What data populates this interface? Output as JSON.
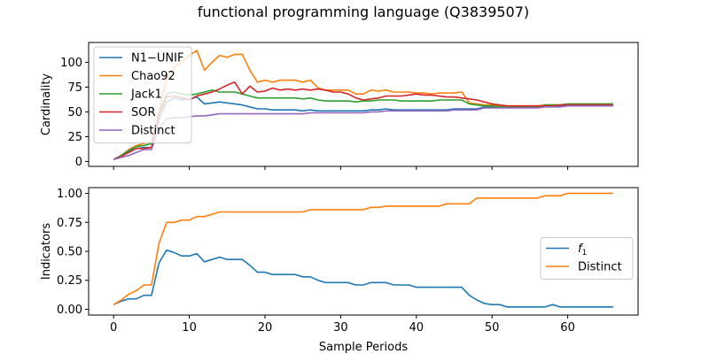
{
  "figure_title": "functional programming language (Q3839507)",
  "colors": {
    "blue": "#1f77b4",
    "orange": "#ff7f0e",
    "green": "#2ca02c",
    "red": "#d62728",
    "purple": "#9467bd"
  },
  "chart_data": [
    {
      "type": "line",
      "ylabel": "Cardinality",
      "xlabel": "",
      "xlim": [
        -3.3,
        69.3
      ],
      "ylim": [
        -5,
        120
      ],
      "xticks": [
        0,
        10,
        20,
        30,
        40,
        50,
        60
      ],
      "yticks": [
        0,
        25,
        50,
        75,
        100
      ],
      "ytick_labels": [
        "0",
        "25",
        "50",
        "75",
        "100"
      ],
      "show_x_tick_labels": false,
      "legend": {
        "position": "upper-left"
      },
      "series": [
        {
          "name": "N1−UNIF",
          "color": "#1f77b4",
          "x": [
            0,
            1,
            2,
            3,
            4,
            5,
            6,
            7,
            8,
            9,
            10,
            11,
            12,
            13,
            14,
            15,
            16,
            17,
            18,
            19,
            20,
            21,
            22,
            23,
            24,
            25,
            26,
            27,
            28,
            29,
            30,
            31,
            32,
            33,
            34,
            35,
            36,
            37,
            38,
            39,
            40,
            41,
            42,
            43,
            44,
            45,
            46,
            47,
            48,
            49,
            50,
            51,
            52,
            53,
            54,
            55,
            56,
            57,
            58,
            59,
            60,
            61,
            62,
            63,
            64,
            65,
            66
          ],
          "y": [
            2,
            6,
            10,
            13,
            14,
            14,
            42,
            60,
            64,
            62,
            63,
            65,
            58,
            59,
            60,
            59,
            58,
            57,
            55,
            53,
            53,
            52,
            52,
            52,
            52,
            51,
            52,
            51,
            51,
            51,
            51,
            51,
            51,
            51,
            52,
            52,
            53,
            52,
            52,
            52,
            52,
            52,
            52,
            52,
            52,
            53,
            53,
            53,
            53,
            55,
            55,
            55,
            55,
            55,
            55,
            55,
            55,
            56,
            56,
            56,
            56,
            56,
            56,
            56,
            56,
            56,
            56
          ]
        },
        {
          "name": "Chao92",
          "color": "#ff7f0e",
          "x": [
            0,
            1,
            2,
            3,
            4,
            5,
            6,
            7,
            8,
            9,
            10,
            11,
            12,
            13,
            14,
            15,
            16,
            17,
            18,
            19,
            20,
            21,
            22,
            23,
            24,
            25,
            26,
            27,
            28,
            29,
            30,
            31,
            32,
            33,
            34,
            35,
            36,
            37,
            38,
            39,
            40,
            41,
            42,
            43,
            44,
            45,
            46,
            47,
            48,
            49,
            50,
            51,
            52,
            53,
            54,
            55,
            56,
            57,
            58,
            59,
            60,
            61,
            62,
            63,
            64,
            65,
            66
          ],
          "y": [
            2,
            6,
            12,
            16,
            18,
            20,
            50,
            84,
            95,
            100,
            107,
            112,
            92,
            100,
            107,
            105,
            108,
            108,
            92,
            80,
            82,
            80,
            82,
            82,
            82,
            80,
            82,
            74,
            72,
            72,
            72,
            72,
            68,
            68,
            72,
            71,
            72,
            70,
            70,
            70,
            69,
            69,
            68,
            69,
            69,
            69,
            70,
            59,
            58,
            57,
            57,
            56,
            56,
            56,
            56,
            56,
            56,
            57,
            57,
            57,
            58,
            58,
            58,
            58,
            58,
            58,
            58
          ]
        },
        {
          "name": "Jack1",
          "color": "#2ca02c",
          "x": [
            0,
            1,
            2,
            3,
            4,
            5,
            6,
            7,
            8,
            9,
            10,
            11,
            12,
            13,
            14,
            15,
            16,
            17,
            18,
            19,
            20,
            21,
            22,
            23,
            24,
            25,
            26,
            27,
            28,
            29,
            30,
            31,
            32,
            33,
            34,
            35,
            36,
            37,
            38,
            39,
            40,
            41,
            42,
            43,
            44,
            45,
            46,
            47,
            48,
            49,
            50,
            51,
            52,
            53,
            54,
            55,
            56,
            57,
            58,
            59,
            60,
            61,
            62,
            63,
            64,
            65,
            66
          ],
          "y": [
            2,
            6,
            11,
            15,
            16,
            18,
            48,
            68,
            70,
            68,
            67,
            68,
            70,
            72,
            70,
            70,
            70,
            68,
            66,
            64,
            64,
            64,
            64,
            64,
            64,
            63,
            64,
            62,
            61,
            61,
            61,
            61,
            60,
            61,
            61,
            62,
            62,
            62,
            61,
            61,
            61,
            61,
            61,
            62,
            62,
            62,
            62,
            58,
            57,
            56,
            56,
            55,
            55,
            55,
            55,
            55,
            55,
            57,
            57,
            57,
            58,
            58,
            58,
            58,
            58,
            58,
            58
          ]
        },
        {
          "name": "SOR",
          "color": "#d62728",
          "x": [
            0,
            1,
            2,
            3,
            4,
            5,
            6,
            7,
            8,
            9,
            10,
            11,
            12,
            13,
            14,
            15,
            16,
            17,
            18,
            19,
            20,
            21,
            22,
            23,
            24,
            25,
            26,
            27,
            28,
            29,
            30,
            31,
            32,
            33,
            34,
            35,
            36,
            37,
            38,
            39,
            40,
            41,
            42,
            43,
            44,
            45,
            46,
            47,
            48,
            49,
            50,
            51,
            52,
            53,
            54,
            55,
            56,
            57,
            58,
            59,
            60,
            61,
            62,
            63,
            64,
            65,
            66
          ],
          "y": [
            2,
            5,
            9,
            13,
            13,
            14,
            47,
            65,
            66,
            64,
            62,
            66,
            68,
            70,
            73,
            77,
            80,
            68,
            76,
            70,
            71,
            74,
            72,
            73,
            72,
            73,
            72,
            73,
            72,
            70,
            70,
            68,
            64,
            62,
            63,
            64,
            66,
            66,
            66,
            67,
            68,
            67,
            67,
            66,
            65,
            65,
            64,
            63,
            62,
            60,
            58,
            57,
            56,
            56,
            56,
            56,
            56,
            56,
            56,
            57,
            57,
            57,
            57,
            57,
            57,
            57,
            57
          ]
        },
        {
          "name": "Distinct",
          "color": "#9467bd",
          "x": [
            0,
            1,
            2,
            3,
            4,
            5,
            6,
            7,
            8,
            9,
            10,
            11,
            12,
            13,
            14,
            15,
            16,
            17,
            18,
            19,
            20,
            21,
            22,
            23,
            24,
            25,
            26,
            27,
            28,
            29,
            30,
            31,
            32,
            33,
            34,
            35,
            36,
            37,
            38,
            39,
            40,
            41,
            42,
            43,
            44,
            45,
            46,
            47,
            48,
            49,
            50,
            51,
            52,
            53,
            54,
            55,
            56,
            57,
            58,
            59,
            60,
            61,
            62,
            63,
            64,
            65,
            66
          ],
          "y": [
            2,
            4,
            6,
            9,
            12,
            12,
            33,
            43,
            44,
            44,
            45,
            46,
            46,
            47,
            48,
            48,
            48,
            48,
            48,
            48,
            48,
            48,
            48,
            48,
            48,
            48,
            49,
            49,
            49,
            49,
            49,
            49,
            49,
            49,
            50,
            50,
            51,
            51,
            51,
            51,
            51,
            51,
            51,
            51,
            51,
            52,
            52,
            52,
            52,
            54,
            54,
            54,
            54,
            54,
            54,
            54,
            54,
            55,
            55,
            55,
            56,
            56,
            56,
            56,
            56,
            56,
            56
          ]
        }
      ]
    },
    {
      "type": "line",
      "ylabel": "Indicators",
      "xlabel": "Sample Periods",
      "xlim": [
        -3.3,
        69.3
      ],
      "ylim": [
        -0.05,
        1.05
      ],
      "xticks": [
        0,
        10,
        20,
        30,
        40,
        50,
        60
      ],
      "xtick_labels": [
        "0",
        "10",
        "20",
        "30",
        "40",
        "50",
        "60"
      ],
      "yticks": [
        0,
        0.25,
        0.5,
        0.75,
        1.0
      ],
      "ytick_labels": [
        "0.00",
        "0.25",
        "0.50",
        "0.75",
        "1.00"
      ],
      "legend": {
        "position": "center-right"
      },
      "series": [
        {
          "name": "f1",
          "color": "#1f77b4",
          "x": [
            0,
            1,
            2,
            3,
            4,
            5,
            6,
            7,
            8,
            9,
            10,
            11,
            12,
            13,
            14,
            15,
            16,
            17,
            18,
            19,
            20,
            21,
            22,
            23,
            24,
            25,
            26,
            27,
            28,
            29,
            30,
            31,
            32,
            33,
            34,
            35,
            36,
            37,
            38,
            39,
            40,
            41,
            42,
            43,
            44,
            45,
            46,
            47,
            48,
            49,
            50,
            51,
            52,
            53,
            54,
            55,
            56,
            57,
            58,
            59,
            60,
            61,
            62,
            63,
            64,
            65,
            66
          ],
          "y": [
            0.04,
            0.07,
            0.09,
            0.09,
            0.12,
            0.12,
            0.4,
            0.51,
            0.49,
            0.46,
            0.46,
            0.48,
            0.41,
            0.43,
            0.45,
            0.43,
            0.43,
            0.43,
            0.38,
            0.32,
            0.32,
            0.3,
            0.3,
            0.3,
            0.3,
            0.28,
            0.28,
            0.25,
            0.23,
            0.23,
            0.23,
            0.23,
            0.21,
            0.21,
            0.23,
            0.23,
            0.23,
            0.21,
            0.21,
            0.21,
            0.19,
            0.19,
            0.19,
            0.19,
            0.19,
            0.19,
            0.19,
            0.12,
            0.08,
            0.05,
            0.04,
            0.04,
            0.02,
            0.02,
            0.02,
            0.02,
            0.02,
            0.02,
            0.04,
            0.02,
            0.02,
            0.02,
            0.02,
            0.02,
            0.02,
            0.02,
            0.02
          ]
        },
        {
          "name": "Distinct",
          "color": "#ff7f0e",
          "x": [
            0,
            1,
            2,
            3,
            4,
            5,
            6,
            7,
            8,
            9,
            10,
            11,
            12,
            13,
            14,
            15,
            16,
            17,
            18,
            19,
            20,
            21,
            22,
            23,
            24,
            25,
            26,
            27,
            28,
            29,
            30,
            31,
            32,
            33,
            34,
            35,
            36,
            37,
            38,
            39,
            40,
            41,
            42,
            43,
            44,
            45,
            46,
            47,
            48,
            49,
            50,
            51,
            52,
            53,
            54,
            55,
            56,
            57,
            58,
            59,
            60,
            61,
            62,
            63,
            64,
            65,
            66
          ],
          "y": [
            0.04,
            0.08,
            0.13,
            0.16,
            0.21,
            0.21,
            0.57,
            0.75,
            0.75,
            0.77,
            0.77,
            0.8,
            0.8,
            0.82,
            0.84,
            0.84,
            0.84,
            0.84,
            0.84,
            0.84,
            0.84,
            0.84,
            0.84,
            0.84,
            0.84,
            0.84,
            0.86,
            0.86,
            0.86,
            0.86,
            0.86,
            0.86,
            0.86,
            0.86,
            0.88,
            0.88,
            0.89,
            0.89,
            0.89,
            0.89,
            0.89,
            0.89,
            0.89,
            0.89,
            0.91,
            0.91,
            0.91,
            0.91,
            0.96,
            0.96,
            0.96,
            0.96,
            0.96,
            0.96,
            0.96,
            0.96,
            0.96,
            0.98,
            0.98,
            0.98,
            1.0,
            1.0,
            1.0,
            1.0,
            1.0,
            1.0,
            1.0
          ]
        }
      ]
    }
  ]
}
